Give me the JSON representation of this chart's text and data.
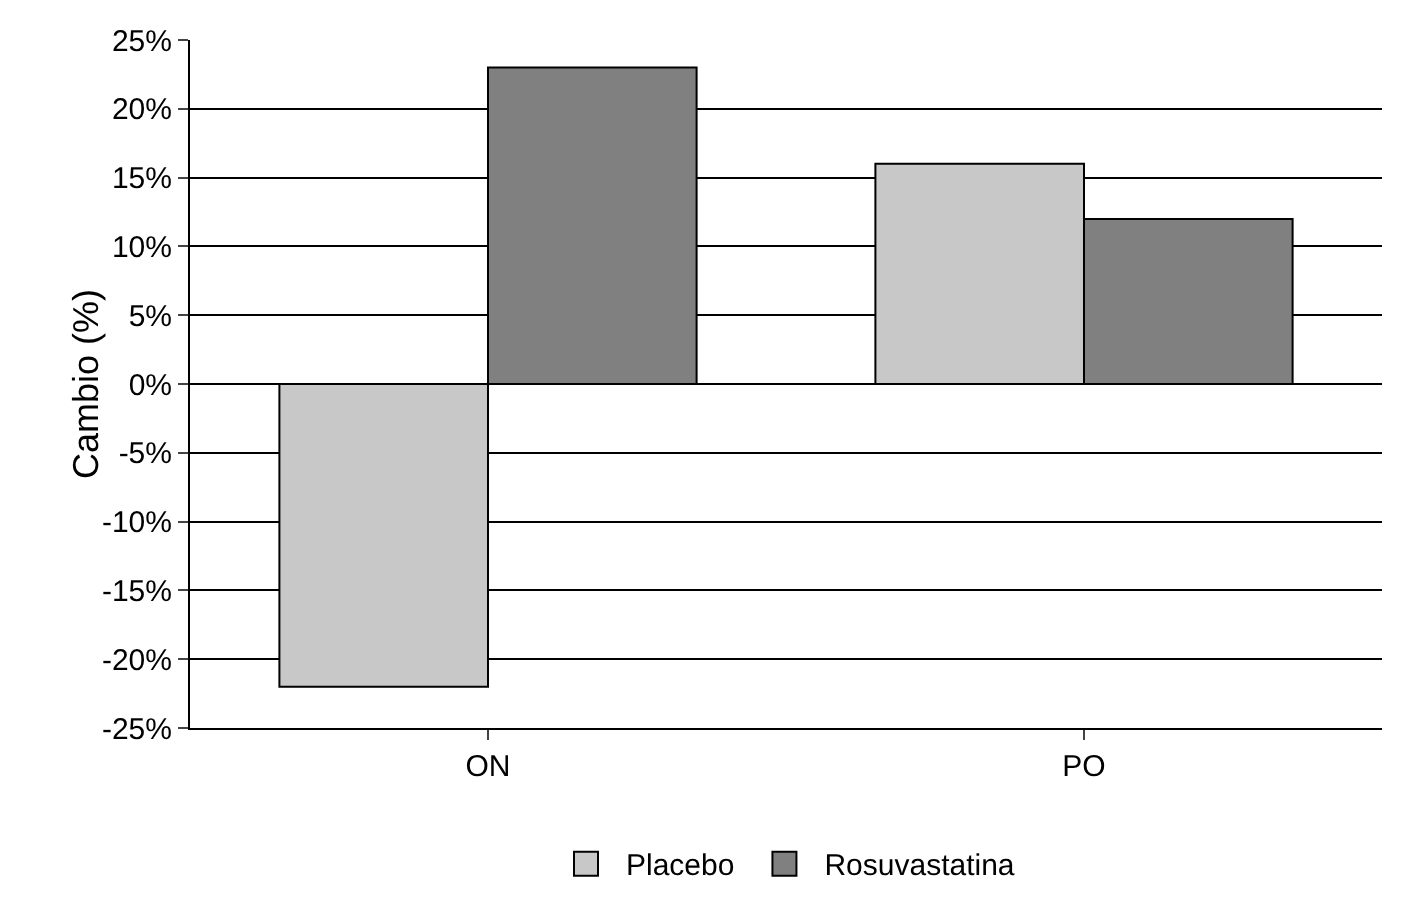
{
  "chart_data": {
    "type": "bar",
    "ylabel": "Cambio (%)",
    "categories": [
      "ON",
      "PO"
    ],
    "series": [
      {
        "name": "Placebo",
        "color": "#c8c8c8",
        "values": [
          -22,
          16
        ]
      },
      {
        "name": "Rosuvastatina",
        "color": "#808080",
        "values": [
          23,
          12
        ]
      }
    ],
    "ylim": [
      -25,
      25
    ],
    "yticks": [
      {
        "value": -25,
        "label": "-25%"
      },
      {
        "value": -20,
        "label": "-20%"
      },
      {
        "value": -15,
        "label": "-15%"
      },
      {
        "value": -10,
        "label": "-10%"
      },
      {
        "value": -5,
        "label": "-5%"
      },
      {
        "value": 0,
        "label": "0%"
      },
      {
        "value": 5,
        "label": "5%"
      },
      {
        "value": 10,
        "label": "10%"
      },
      {
        "value": 15,
        "label": "15%"
      },
      {
        "value": 20,
        "label": "20%"
      },
      {
        "value": 25,
        "label": "25%"
      }
    ],
    "grid": "y",
    "legend": "bottom"
  }
}
